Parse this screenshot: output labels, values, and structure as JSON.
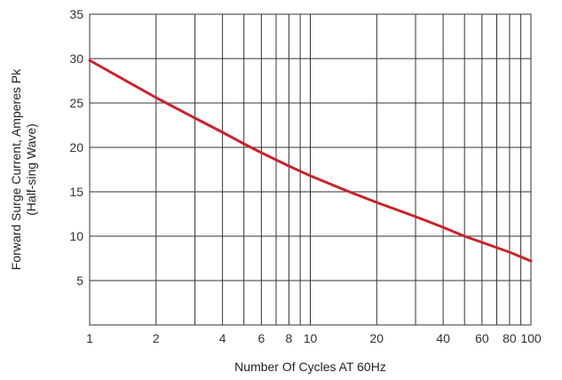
{
  "chart_data": {
    "type": "line",
    "title": "",
    "xlabel": "Number Of Cycles AT 60Hz",
    "ylabel": "Forward Surge Current, Amperes Pk",
    "ylabel_line2": "(Half-sing Wave)",
    "x_scale": "log",
    "xlim": [
      1,
      100
    ],
    "ylim": [
      0,
      35
    ],
    "grid": true,
    "x_ticks": [
      {
        "value": 1,
        "label": "1"
      },
      {
        "value": 2,
        "label": "2"
      },
      {
        "value": 4,
        "label": "4"
      },
      {
        "value": 6,
        "label": "6"
      },
      {
        "value": 8,
        "label": "8"
      },
      {
        "value": 10,
        "label": "10"
      },
      {
        "value": 20,
        "label": "20"
      },
      {
        "value": 40,
        "label": "40"
      },
      {
        "value": 60,
        "label": "60"
      },
      {
        "value": 80,
        "label": "80"
      },
      {
        "value": 100,
        "label": "100"
      }
    ],
    "x_gridlines": [
      1,
      2,
      3,
      4,
      5,
      6,
      7,
      8,
      9,
      10,
      20,
      30,
      40,
      50,
      60,
      70,
      80,
      90,
      100
    ],
    "y_ticks": [
      {
        "value": 5,
        "label": "5"
      },
      {
        "value": 10,
        "label": "10"
      },
      {
        "value": 15,
        "label": "15"
      },
      {
        "value": 20,
        "label": "20"
      },
      {
        "value": 25,
        "label": "25"
      },
      {
        "value": 30,
        "label": "30"
      },
      {
        "value": 35,
        "label": "35"
      }
    ],
    "y_gridlines": [
      5,
      10,
      15,
      20,
      25,
      30,
      35
    ],
    "series": [
      {
        "color": "#c8242b",
        "x": [
          1,
          2,
          3,
          4,
          5,
          6,
          8,
          10,
          15,
          20,
          30,
          40,
          50,
          60,
          80,
          100
        ],
        "y": [
          29.8,
          25.6,
          23.3,
          21.7,
          20.4,
          19.4,
          17.9,
          16.8,
          15.0,
          13.8,
          12.2,
          11.0,
          10.0,
          9.3,
          8.2,
          7.2
        ]
      }
    ]
  }
}
